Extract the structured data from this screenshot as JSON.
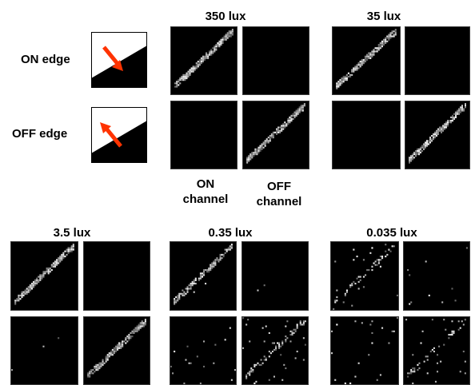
{
  "row_labels": {
    "on_edge": "ON edge",
    "off_edge": "OFF edge"
  },
  "column_labels": {
    "on_channel_line1": "ON",
    "on_channel_line2": "channel",
    "off_channel_line1": "OFF",
    "off_channel_line2": "channel"
  },
  "illuminance_labels": {
    "l350": "350 lux",
    "l35": "35 lux",
    "l3_5": "3.5 lux",
    "l0_35": "0.35 lux",
    "l0_035": "0.035 lux"
  },
  "colors": {
    "arrow": "#ff3300",
    "background": "#000000",
    "foreground": "#ffffff"
  },
  "icons": {
    "on_edge": "edge-arrow-icon-down-right",
    "off_edge": "edge-arrow-icon-up-left"
  }
}
